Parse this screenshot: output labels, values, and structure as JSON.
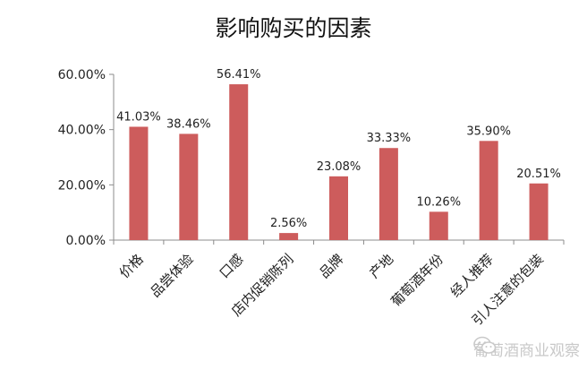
{
  "chart_data": {
    "type": "bar",
    "title": "影响购买的因素",
    "xlabel": "",
    "ylabel": "",
    "categories": [
      "价格",
      "品尝体验",
      "口感",
      "店内促销陈列",
      "品牌",
      "产地",
      "葡萄酒年份",
      "经人推荐",
      "引人注意的包装"
    ],
    "values": [
      41.03,
      38.46,
      56.41,
      2.56,
      23.08,
      33.33,
      10.26,
      35.9,
      20.51
    ],
    "value_labels": [
      "41.03%",
      "38.46%",
      "56.41%",
      "2.56%",
      "23.08%",
      "33.33%",
      "10.26%",
      "35.90%",
      "20.51%"
    ],
    "ylim": [
      0,
      60
    ],
    "yticks": [
      0,
      20,
      40,
      60
    ],
    "ytick_labels": [
      "0.00%",
      "20.00%",
      "40.00%",
      "60.00%"
    ],
    "grid": false,
    "bar_color": "#cd5c5c"
  },
  "watermark": {
    "icon": "wechat-icon",
    "text": "葡萄酒商业观察"
  }
}
